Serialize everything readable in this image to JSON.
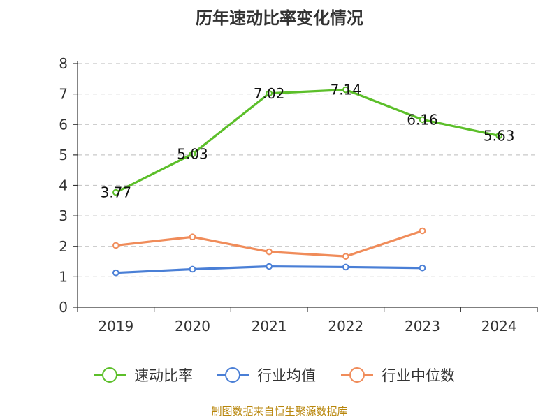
{
  "chart_data": {
    "type": "line",
    "title": "历年速动比率变化情况",
    "categories": [
      "2019",
      "2020",
      "2021",
      "2022",
      "2023",
      "2024"
    ],
    "ylim": [
      0,
      8
    ],
    "yticks": [
      "0",
      "1",
      "2",
      "3",
      "4",
      "5",
      "6",
      "7",
      "8"
    ],
    "grid": true,
    "legend_position": "bottom",
    "series": [
      {
        "name": "速动比率",
        "color": "#5cbf2a",
        "values": [
          3.77,
          5.03,
          7.02,
          7.14,
          6.16,
          5.63
        ],
        "labels": [
          "3.77",
          "5.03",
          "7.02",
          "7.14",
          "6.16",
          "5.63"
        ]
      },
      {
        "name": "行业均值",
        "color": "#4a7fd6",
        "values": [
          1.13,
          1.25,
          1.34,
          1.32,
          1.29,
          null
        ]
      },
      {
        "name": "行业中位数",
        "color": "#f08c5a",
        "values": [
          2.03,
          2.31,
          1.82,
          1.67,
          2.51,
          null
        ]
      }
    ]
  },
  "source": "制图数据来自恒生聚源数据库"
}
